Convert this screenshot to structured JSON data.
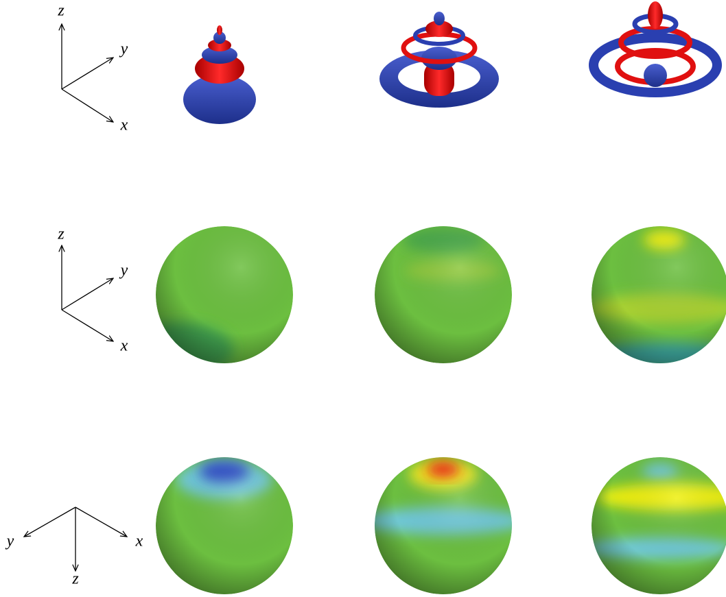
{
  "triads": [
    {
      "labels": [
        "z",
        "y",
        "x"
      ]
    },
    {
      "labels": [
        "z",
        "y",
        "x"
      ]
    },
    {
      "labels": [
        "y",
        "x",
        "z"
      ]
    }
  ]
}
